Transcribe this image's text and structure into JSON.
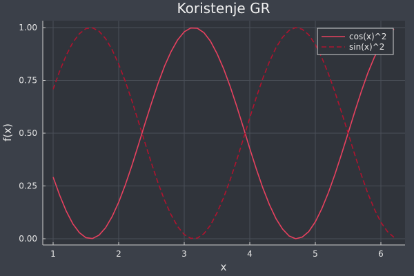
{
  "chart_data": {
    "type": "line",
    "title": "Koristenje GR",
    "xlabel": "x",
    "ylabel": "f(x)",
    "xlim": [
      1,
      6.2
    ],
    "ylim": [
      0,
      1
    ],
    "x_ticks": [
      1,
      2,
      3,
      4,
      5,
      6
    ],
    "x_tick_labels": [
      "1",
      "2",
      "3",
      "4",
      "5",
      "6"
    ],
    "y_ticks": [
      0,
      0.25,
      0.5,
      0.75,
      1
    ],
    "y_tick_labels": [
      "0.00",
      "0.25",
      "0.50",
      "0.75",
      "1.00"
    ],
    "grid": true,
    "legend_position": "top-right",
    "x": [
      1.0,
      1.1,
      1.2,
      1.3,
      1.4,
      1.5,
      1.6,
      1.7,
      1.8,
      1.9,
      2.0,
      2.1,
      2.2,
      2.3,
      2.4,
      2.5,
      2.6,
      2.7,
      2.8,
      2.9,
      3.0,
      3.1,
      3.2,
      3.3,
      3.4,
      3.5,
      3.6,
      3.7,
      3.8,
      3.9,
      4.0,
      4.1,
      4.2,
      4.3,
      4.4,
      4.5,
      4.6,
      4.7,
      4.8,
      4.9,
      5.0,
      5.1,
      5.2,
      5.3,
      5.4,
      5.5,
      5.6,
      5.7,
      5.8,
      5.9,
      6.0,
      6.1,
      6.2
    ],
    "series": [
      {
        "name": "cos(x)^2",
        "color": "#e8415f",
        "dash": "solid",
        "values": [
          0.292,
          0.206,
          0.131,
          0.071,
          0.029,
          0.005,
          0.001,
          0.017,
          0.052,
          0.105,
          0.173,
          0.254,
          0.345,
          0.444,
          0.544,
          0.642,
          0.735,
          0.818,
          0.887,
          0.942,
          0.98,
          0.998,
          0.997,
          0.976,
          0.936,
          0.877,
          0.806,
          0.722,
          0.628,
          0.529,
          0.427,
          0.33,
          0.24,
          0.161,
          0.095,
          0.046,
          0.013,
          0.0,
          0.008,
          0.034,
          0.08,
          0.143,
          0.219,
          0.306,
          0.401,
          0.5,
          0.6,
          0.696,
          0.784,
          0.859,
          0.922,
          0.966,
          0.993
        ]
      },
      {
        "name": "sin(x)^2",
        "color": "#b0132f",
        "dash": "dashed",
        "values": [
          0.708,
          0.794,
          0.869,
          0.929,
          0.971,
          0.995,
          0.999,
          0.983,
          0.948,
          0.895,
          0.827,
          0.746,
          0.655,
          0.556,
          0.456,
          0.358,
          0.265,
          0.182,
          0.113,
          0.058,
          0.02,
          0.002,
          0.003,
          0.024,
          0.064,
          0.123,
          0.194,
          0.278,
          0.372,
          0.471,
          0.573,
          0.67,
          0.76,
          0.839,
          0.905,
          0.954,
          0.987,
          1.0,
          0.992,
          0.966,
          0.92,
          0.857,
          0.781,
          0.694,
          0.599,
          0.5,
          0.4,
          0.304,
          0.216,
          0.141,
          0.078,
          0.034,
          0.007
        ]
      }
    ]
  }
}
